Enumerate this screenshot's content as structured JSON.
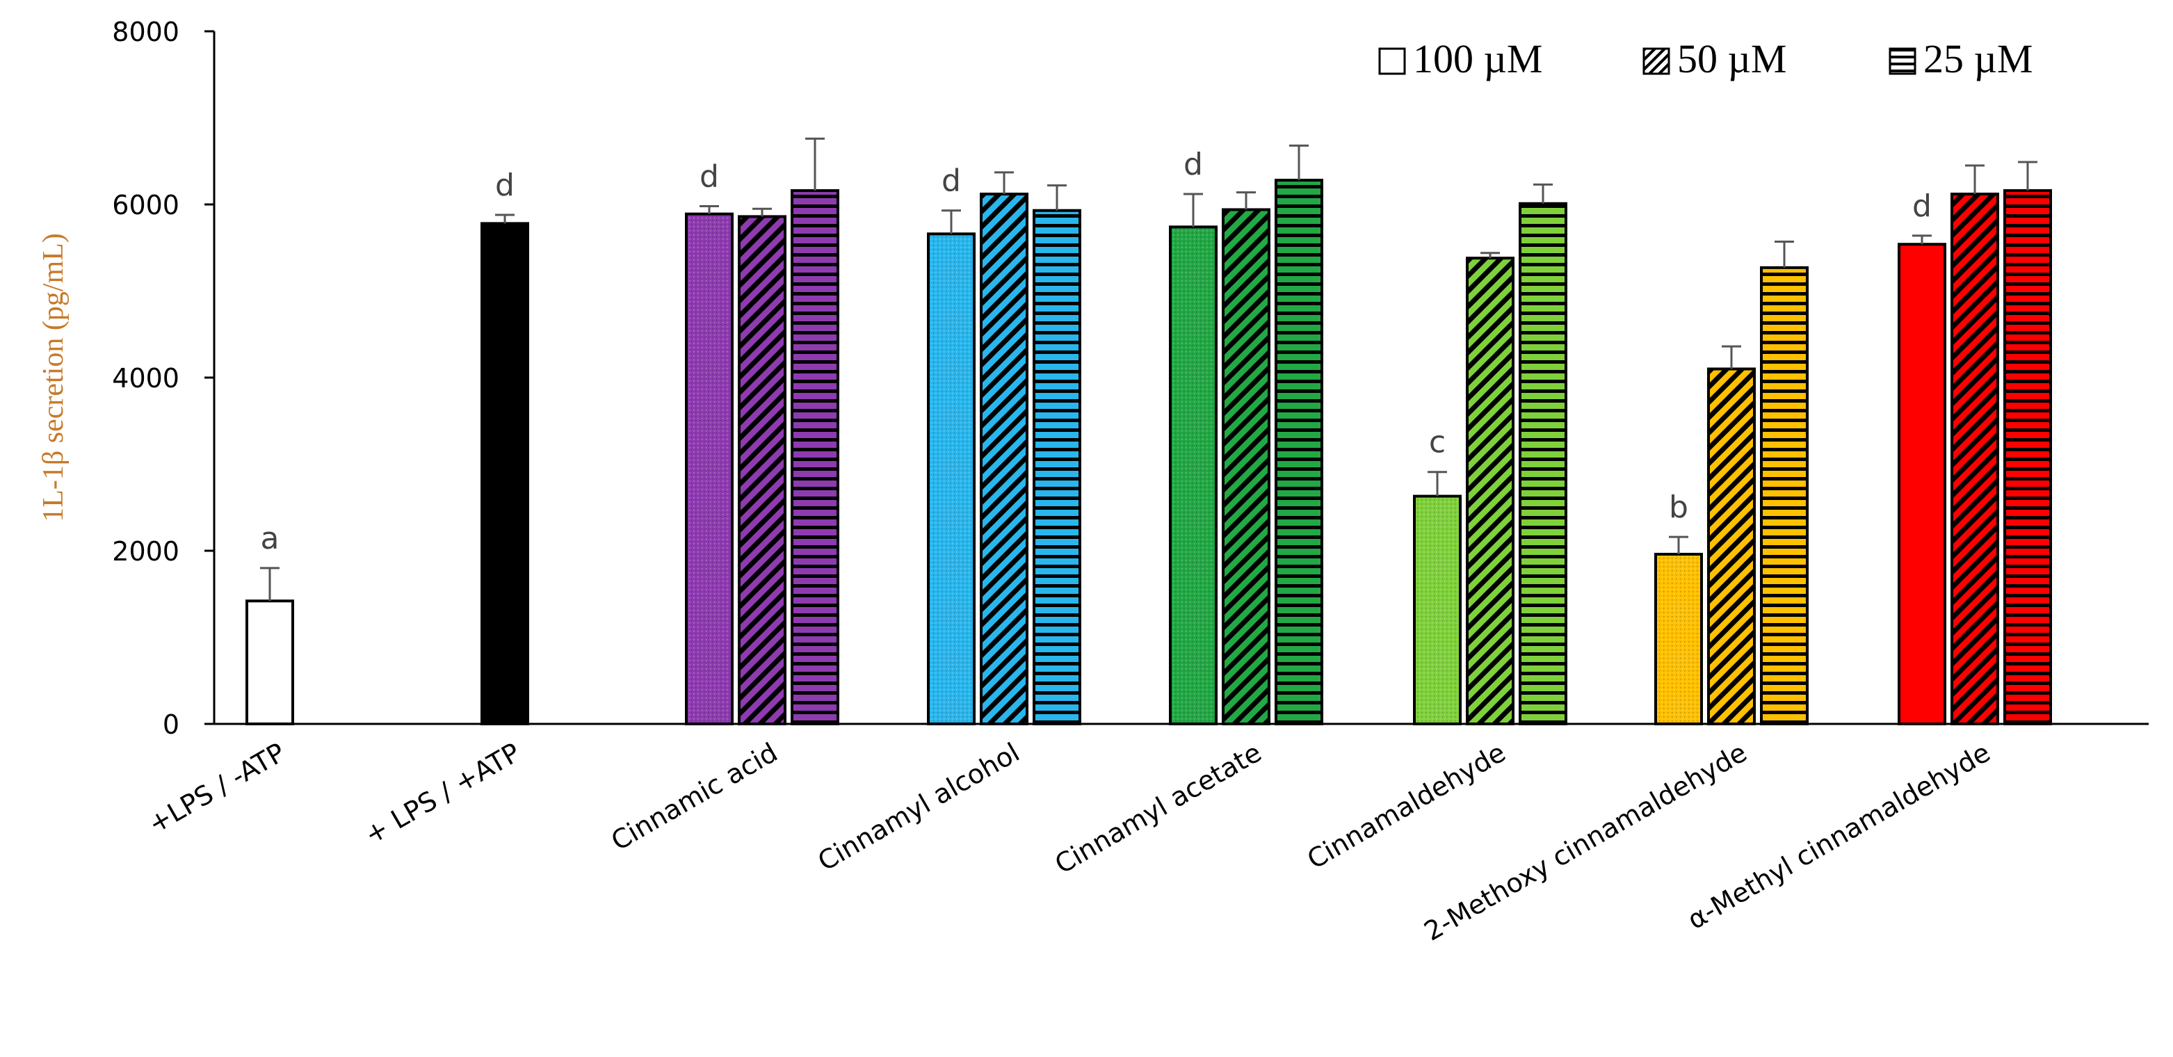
{
  "chart_data": {
    "type": "bar",
    "title": "",
    "xlabel": "",
    "ylabel": "1L-1β secretion (pg/mL)",
    "ylim": [
      0,
      8000
    ],
    "yticks": [
      0,
      2000,
      4000,
      6000,
      8000
    ],
    "ytick_labels": [
      "0",
      "2000",
      "4000",
      "6000",
      "8000"
    ],
    "grid": false,
    "legend_position": "top-right",
    "legend": [
      {
        "label": "100 µM",
        "pattern": "open"
      },
      {
        "label": "50 µM",
        "pattern": "diagonal"
      },
      {
        "label": "25 µM",
        "pattern": "horizontal"
      }
    ],
    "groups": [
      {
        "category": "+LPS / -ATP",
        "color": "#ffffff",
        "bars": [
          {
            "conc": "100 µM",
            "value": 1420,
            "error": 380,
            "pattern": "solid"
          }
        ],
        "letter": "a"
      },
      {
        "category": "+ LPS / +ATP",
        "color": "#000000",
        "bars": [
          {
            "conc": "100 µM",
            "value": 5780,
            "error": 100,
            "pattern": "solid"
          }
        ],
        "letter": "d"
      },
      {
        "category": "Cinnamic acid",
        "color": "#8e3bb0",
        "bars": [
          {
            "conc": "100 µM",
            "value": 5890,
            "error": 90,
            "pattern": "dots"
          },
          {
            "conc": "50 µM",
            "value": 5860,
            "error": 90,
            "pattern": "diagonal"
          },
          {
            "conc": "25 µM",
            "value": 6160,
            "error": 600,
            "pattern": "horizontal"
          }
        ],
        "letter": "d"
      },
      {
        "category": "Cinnamyl alcohol",
        "color": "#29b6ec",
        "bars": [
          {
            "conc": "100 µM",
            "value": 5660,
            "error": 270,
            "pattern": "dots"
          },
          {
            "conc": "50 µM",
            "value": 6120,
            "error": 250,
            "pattern": "diagonal"
          },
          {
            "conc": "25 µM",
            "value": 5930,
            "error": 290,
            "pattern": "horizontal"
          }
        ],
        "letter": "d"
      },
      {
        "category": "Cinnamyl acetate",
        "color": "#22a845",
        "bars": [
          {
            "conc": "100 µM",
            "value": 5740,
            "error": 380,
            "pattern": "dots"
          },
          {
            "conc": "50 µM",
            "value": 5940,
            "error": 200,
            "pattern": "diagonal"
          },
          {
            "conc": "25 µM",
            "value": 6280,
            "error": 400,
            "pattern": "horizontal"
          }
        ],
        "letter": "d"
      },
      {
        "category": "Cinnamaldehyde",
        "color": "#7fd13b",
        "bars": [
          {
            "conc": "100 µM",
            "value": 2630,
            "error": 280,
            "pattern": "dots"
          },
          {
            "conc": "50 µM",
            "value": 5380,
            "error": 60,
            "pattern": "diagonal"
          },
          {
            "conc": "25 µM",
            "value": 6010,
            "error": 220,
            "pattern": "horizontal"
          }
        ],
        "letter": "c"
      },
      {
        "category": "2-Methoxy cinnamaldehyde",
        "color": "#ffc000",
        "bars": [
          {
            "conc": "100 µM",
            "value": 1960,
            "error": 200,
            "pattern": "dots"
          },
          {
            "conc": "50 µM",
            "value": 4100,
            "error": 260,
            "pattern": "diagonal"
          },
          {
            "conc": "25 µM",
            "value": 5270,
            "error": 300,
            "pattern": "horizontal"
          }
        ],
        "letter": "b"
      },
      {
        "category": "α-Methyl  cinnamaldehyde",
        "color": "#ff0000",
        "bars": [
          {
            "conc": "100 µM",
            "value": 5540,
            "error": 100,
            "pattern": "solid"
          },
          {
            "conc": "50 µM",
            "value": 6120,
            "error": 330,
            "pattern": "diagonal"
          },
          {
            "conc": "25 µM",
            "value": 6160,
            "error": 330,
            "pattern": "horizontal"
          }
        ],
        "letter": "d"
      }
    ]
  }
}
